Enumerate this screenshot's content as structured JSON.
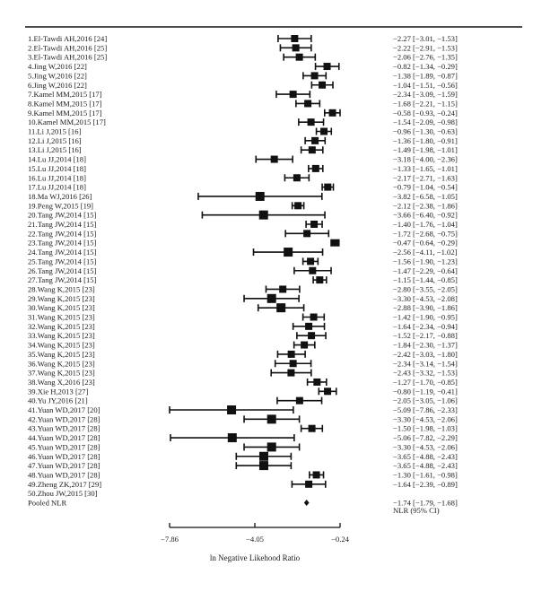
{
  "chart_data": {
    "type": "forest",
    "xlabel": "ln Negative Likehood Ratio",
    "ci_header": "NLR (95% CI)",
    "x_ticks": [
      -7.86,
      -4.05,
      -0.24
    ],
    "x_tick_labels": [
      "−7.86",
      "−4.05",
      "−0.24"
    ],
    "xlim": [
      -7.86,
      -0.24
    ],
    "studies": [
      {
        "label": "1.El-Tawdi AH,2016 [24]",
        "est": -2.27,
        "lo": -3.01,
        "hi": -1.53,
        "text": "−2.27 [−3.01, −1.53]"
      },
      {
        "label": "2.El-Tawdi AH,2016 [25]",
        "est": -2.22,
        "lo": -2.91,
        "hi": -1.53,
        "text": "−2.22 [−2.91, −1.53]"
      },
      {
        "label": "3.El-Tawdi AH,2016 [25]",
        "est": -2.06,
        "lo": -2.76,
        "hi": -1.35,
        "text": "−2.06 [−2.76, −1.35]"
      },
      {
        "label": "4.Jing W,2016 [22]",
        "est": -0.82,
        "lo": -1.34,
        "hi": -0.29,
        "text": "−0.82 [−1.34, −0.29]"
      },
      {
        "label": "5.Jing W,2016 [22]",
        "est": -1.38,
        "lo": -1.89,
        "hi": -0.87,
        "text": "−1.38 [−1.89, −0.87]"
      },
      {
        "label": "6.Jing W,2016 [22]",
        "est": -1.04,
        "lo": -1.51,
        "hi": -0.56,
        "text": "−1.04 [−1.51, −0.56]"
      },
      {
        "label": "7.Kamel MM,2015 [17]",
        "est": -2.34,
        "lo": -3.09,
        "hi": -1.59,
        "text": "−2.34 [−3.09, −1.59]"
      },
      {
        "label": "8.Kamel MM,2015 [17]",
        "est": -1.68,
        "lo": -2.21,
        "hi": -1.15,
        "text": "−1.68 [−2.21, −1.15]"
      },
      {
        "label": "9.Kamel MM,2015 [17]",
        "est": -0.58,
        "lo": -0.93,
        "hi": -0.24,
        "text": "−0.58 [−0.93, −0.24]"
      },
      {
        "label": "10.Kamel MM,2015 [17]",
        "est": -1.54,
        "lo": -2.09,
        "hi": -0.98,
        "text": "−1.54 [−2.09, −0.98]"
      },
      {
        "label": "11.Li J,2015 [16]",
        "est": -0.96,
        "lo": -1.3,
        "hi": -0.63,
        "text": "−0.96 [−1.30, −0.63]"
      },
      {
        "label": "12.Li J,2015 [16]",
        "est": -1.36,
        "lo": -1.8,
        "hi": -0.91,
        "text": "−1.36 [−1.80, −0.91]"
      },
      {
        "label": "13.Li J,2015 [16]",
        "est": -1.49,
        "lo": -1.98,
        "hi": -1.01,
        "text": "−1.49 [−1.98, −1.01]"
      },
      {
        "label": "14.Lu JJ,2014 [18]",
        "est": -3.18,
        "lo": -4.0,
        "hi": -2.36,
        "text": "−3.18 [−4.00, −2.36]"
      },
      {
        "label": "15.Lu JJ,2014 [18]",
        "est": -1.33,
        "lo": -1.65,
        "hi": -1.01,
        "text": "−1.33 [−1.65, −1.01]"
      },
      {
        "label": "16.Lu JJ,2014 [18]",
        "est": -2.17,
        "lo": -2.71,
        "hi": -1.63,
        "text": "−2.17 [−2.71, −1.63]"
      },
      {
        "label": "17.Lu JJ,2014 [18]",
        "est": -0.79,
        "lo": -1.04,
        "hi": -0.54,
        "text": "−0.79 [−1.04, −0.54]"
      },
      {
        "label": "18.Ma WJ,2016 [26]",
        "est": -3.82,
        "lo": -6.58,
        "hi": -1.05,
        "text": "−3.82 [−6.58, −1.05]"
      },
      {
        "label": "19.Peng W,2015 [19]",
        "est": -2.12,
        "lo": -2.38,
        "hi": -1.86,
        "text": "−2.12 [−2.38, −1.86]"
      },
      {
        "label": "20.Tang JW,2014 [15]",
        "est": -3.66,
        "lo": -6.4,
        "hi": -0.92,
        "text": "−3.66 [−6.40, −0.92]"
      },
      {
        "label": "21.Tang JW,2014 [15]",
        "est": -1.4,
        "lo": -1.76,
        "hi": -1.04,
        "text": "−1.40 [−1.76, −1.04]"
      },
      {
        "label": "22.Tang JW,2014 [15]",
        "est": -1.72,
        "lo": -2.68,
        "hi": -0.75,
        "text": "−1.72 [−2.68, −0.75]"
      },
      {
        "label": "23.Tang JW,2014 [15]",
        "est": -0.47,
        "lo": -0.64,
        "hi": -0.29,
        "text": "−0.47 [−0.64, −0.29]"
      },
      {
        "label": "24.Tang JW,2014 [15]",
        "est": -2.56,
        "lo": -4.11,
        "hi": -1.02,
        "text": "−2.56 [−4.11, −1.02]"
      },
      {
        "label": "25.Tang JW,2014 [15]",
        "est": -1.56,
        "lo": -1.9,
        "hi": -1.23,
        "text": "−1.56 [−1.90, −1.23]"
      },
      {
        "label": "26.Tang JW,2014 [15]",
        "est": -1.47,
        "lo": -2.29,
        "hi": -0.64,
        "text": "−1.47 [−2.29, −0.64]"
      },
      {
        "label": "27.Tang JW,2014 [15]",
        "est": -1.15,
        "lo": -1.44,
        "hi": -0.85,
        "text": "−1.15 [−1.44, −0.85]"
      },
      {
        "label": "28.Wang K,2015 [23]",
        "est": -2.8,
        "lo": -3.55,
        "hi": -2.05,
        "text": "−2.80 [−3.55, −2.05]"
      },
      {
        "label": "29.Wang K,2015 [23]",
        "est": -3.3,
        "lo": -4.53,
        "hi": -2.08,
        "text": "−3.30 [−4.53, −2.08]"
      },
      {
        "label": "30.Wang K,2015 [23]",
        "est": -2.88,
        "lo": -3.9,
        "hi": -1.86,
        "text": "−2.88 [−3.90, −1.86]"
      },
      {
        "label": "31.Wang K,2015 [23]",
        "est": -1.42,
        "lo": -1.9,
        "hi": -0.95,
        "text": "−1.42 [−1.90, −0.95]"
      },
      {
        "label": "32.Wang K,2015 [23]",
        "est": -1.64,
        "lo": -2.34,
        "hi": -0.94,
        "text": "−1.64 [−2.34, −0.94]"
      },
      {
        "label": "33.Wang K,2015 [23]",
        "est": -1.52,
        "lo": -2.17,
        "hi": -0.88,
        "text": "−1.52 [−2.17, −0.88]"
      },
      {
        "label": "34.Wang K,2015 [23]",
        "est": -1.84,
        "lo": -2.3,
        "hi": -1.37,
        "text": "−1.84 [−2.30, −1.37]"
      },
      {
        "label": "35.Wang K,2015 [23]",
        "est": -2.42,
        "lo": -3.03,
        "hi": -1.8,
        "text": "−2.42 [−3.03, −1.80]"
      },
      {
        "label": "36.Wang K,2015 [23]",
        "est": -2.34,
        "lo": -3.14,
        "hi": -1.54,
        "text": "−2.34 [−3.14, −1.54]"
      },
      {
        "label": "37.Wang K,2015 [23]",
        "est": -2.43,
        "lo": -3.32,
        "hi": -1.53,
        "text": "−2.43 [−3.32, −1.53]"
      },
      {
        "label": "38.Wang X,2016 [23]",
        "est": -1.27,
        "lo": -1.7,
        "hi": -0.85,
        "text": "−1.27 [−1.70, −0.85]"
      },
      {
        "label": "39.Xie H,2013 [27]",
        "est": -0.8,
        "lo": -1.19,
        "hi": -0.41,
        "text": "−0.80 [−1.19, −0.41]"
      },
      {
        "label": "40.Yu JY,2016 [21]",
        "est": -2.05,
        "lo": -3.05,
        "hi": -1.06,
        "text": "−2.05 [−3.05, −1.06]"
      },
      {
        "label": "41.Yuan WD,2017 [20]",
        "est": -5.09,
        "lo": -7.86,
        "hi": -2.33,
        "text": "−5.09 [−7.86, −2.33]"
      },
      {
        "label": "42.Yuan WD,2017 [28]",
        "est": -3.3,
        "lo": -4.53,
        "hi": -2.06,
        "text": "−3.30 [−4.53, −2.06]"
      },
      {
        "label": "43.Yuan WD,2017 [28]",
        "est": -1.5,
        "lo": -1.98,
        "hi": -1.03,
        "text": "−1.50 [−1.98, −1.03]"
      },
      {
        "label": "44.Yuan WD,2017 [28]",
        "est": -5.06,
        "lo": -7.82,
        "hi": -2.29,
        "text": "−5.06 [−7.82, −2.29]"
      },
      {
        "label": "45.Yuan WD,2017 [28]",
        "est": -3.3,
        "lo": -4.53,
        "hi": -2.06,
        "text": "−3.30 [−4.53, −2.06]"
      },
      {
        "label": "46.Yuan WD,2017 [28]",
        "est": -3.65,
        "lo": -4.88,
        "hi": -2.43,
        "text": "−3.65 [−4.88, −2.43]"
      },
      {
        "label": "47.Yuan WD,2017 [28]",
        "est": -3.65,
        "lo": -4.88,
        "hi": -2.43,
        "text": "−3.65 [−4.88, −2.43]"
      },
      {
        "label": "48.Yuan WD,2017 [28]",
        "est": -1.3,
        "lo": -1.61,
        "hi": -0.98,
        "text": "−1.30 [−1.61, −0.98]"
      },
      {
        "label": "49.Zheng ZK,2017 [29]",
        "est": -1.64,
        "lo": -2.39,
        "hi": -0.89,
        "text": "−1.64 [−2.39, −0.89]"
      },
      {
        "label": "50.Zhou JW,2015 [30]",
        "est": null,
        "lo": null,
        "hi": null,
        "text": ""
      }
    ],
    "pooled": {
      "label": "Pooled NLR",
      "est": -1.74,
      "lo": -1.79,
      "hi": -1.68,
      "text": "−1.74 [−1.79, −1.68]"
    },
    "colors": {
      "ink": "#111111"
    }
  }
}
